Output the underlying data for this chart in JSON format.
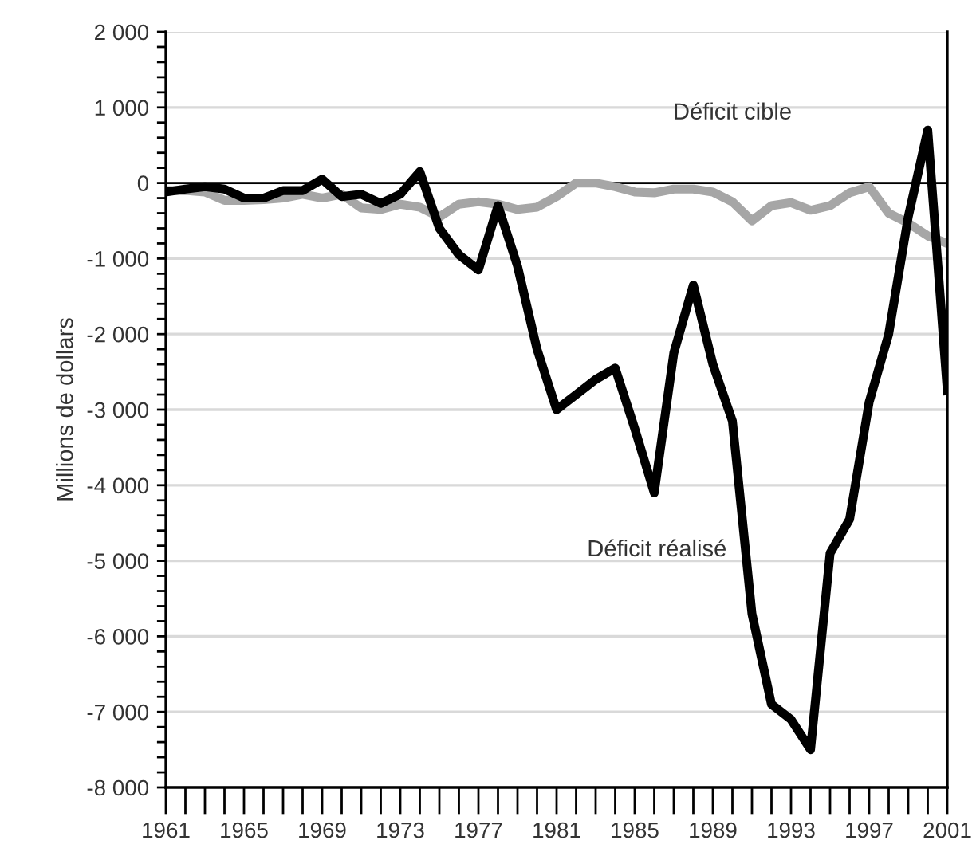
{
  "chart_data": {
    "type": "line",
    "ylabel": "Millions de dollars",
    "x": [
      1961,
      1962,
      1963,
      1964,
      1965,
      1966,
      1967,
      1968,
      1969,
      1970,
      1971,
      1972,
      1973,
      1974,
      1975,
      1976,
      1977,
      1978,
      1979,
      1980,
      1981,
      1982,
      1983,
      1984,
      1985,
      1986,
      1987,
      1988,
      1989,
      1990,
      1991,
      1992,
      1993,
      1994,
      1995,
      1996,
      1997,
      1998,
      1999,
      2000,
      2001
    ],
    "series": [
      {
        "name": "Déficit cible",
        "color": "#a6a6a6",
        "values": [
          -100,
          -100,
          -120,
          -230,
          -230,
          -220,
          -200,
          -150,
          -200,
          -150,
          -330,
          -350,
          -280,
          -320,
          -450,
          -280,
          -250,
          -280,
          -350,
          -320,
          -180,
          0,
          0,
          -50,
          -120,
          -130,
          -80,
          -80,
          -120,
          -250,
          -500,
          -300,
          -260,
          -360,
          -300,
          -130,
          -50,
          -400,
          -530,
          -700,
          -800
        ]
      },
      {
        "name": "Déficit réalisé",
        "color": "#000000",
        "values": [
          -120,
          -80,
          -50,
          -80,
          -200,
          -200,
          -100,
          -100,
          50,
          -180,
          -150,
          -270,
          -150,
          150,
          -600,
          -950,
          -1150,
          -300,
          -1100,
          -2200,
          -3000,
          -2800,
          -2600,
          -2450,
          -3250,
          -4100,
          -2250,
          -1350,
          -2400,
          -3150,
          -5700,
          -6900,
          -7100,
          -7500,
          -4900,
          -4450,
          -2900,
          -2000,
          -450,
          700,
          -2750
        ]
      }
    ],
    "xlim": [
      1961,
      2001
    ],
    "xticks": [
      1961,
      1965,
      1969,
      1973,
      1977,
      1981,
      1985,
      1989,
      1993,
      1997,
      2001
    ],
    "ylim": [
      -8000,
      2000
    ],
    "yticks": [
      {
        "value": 2000,
        "label": "2 000"
      },
      {
        "value": 1000,
        "label": "1 000"
      },
      0,
      {
        "value": -1000,
        "label": "-1 000"
      },
      {
        "value": -2000,
        "label": "-2 000"
      },
      {
        "value": -3000,
        "label": "-3 000"
      },
      {
        "value": -4000,
        "label": "-4 000"
      },
      {
        "value": -5000,
        "label": "-5 000"
      },
      {
        "value": -6000,
        "label": "-6 000"
      },
      {
        "value": -7000,
        "label": "-7 000"
      },
      {
        "value": -8000,
        "label": "-8 000"
      }
    ],
    "grid": "y",
    "ref_lines": [
      {
        "axis": "y",
        "value": 0,
        "color": "#000000"
      }
    ]
  }
}
